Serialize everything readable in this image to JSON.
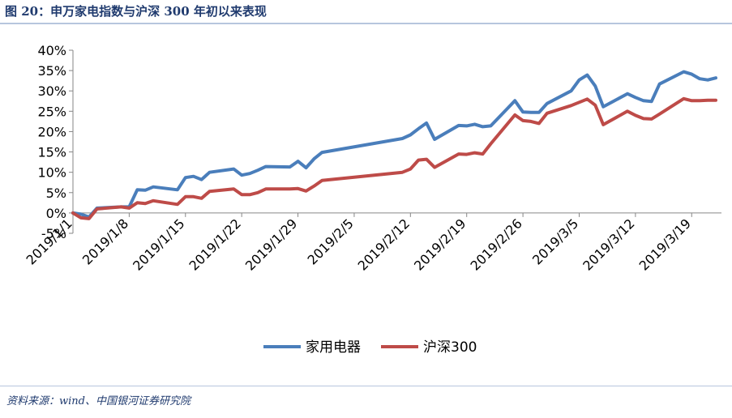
{
  "figure": {
    "title": "图 20：申万家电指数与沪深 300 年初以来表现",
    "source": "资料来源：wind、中国银河证券研究院"
  },
  "chart_data": {
    "type": "line",
    "title": "",
    "xlabel": "",
    "ylabel": "",
    "ylim": [
      -0.05,
      0.4
    ],
    "y_ticks": [
      "-5%",
      "0%",
      "5%",
      "10%",
      "15%",
      "20%",
      "25%",
      "30%",
      "35%",
      "40%"
    ],
    "y_tick_values": [
      -0.05,
      0,
      0.05,
      0.1,
      0.15,
      0.2,
      0.25,
      0.3,
      0.35,
      0.4
    ],
    "x_ticks": [
      "2019/1/1",
      "2019/1/8",
      "2019/1/15",
      "2019/1/22",
      "2019/1/29",
      "2019/2/5",
      "2019/2/12",
      "2019/2/19",
      "2019/2/26",
      "2019/3/5",
      "2019/3/12",
      "2019/3/19"
    ],
    "grid": false,
    "legend": "bottom",
    "x": [
      "2019-01-01",
      "2019-01-02",
      "2019-01-03",
      "2019-01-04",
      "2019-01-07",
      "2019-01-08",
      "2019-01-09",
      "2019-01-10",
      "2019-01-11",
      "2019-01-14",
      "2019-01-15",
      "2019-01-16",
      "2019-01-17",
      "2019-01-18",
      "2019-01-21",
      "2019-01-22",
      "2019-01-23",
      "2019-01-24",
      "2019-01-25",
      "2019-01-28",
      "2019-01-29",
      "2019-01-30",
      "2019-01-31",
      "2019-02-01",
      "2019-02-11",
      "2019-02-12",
      "2019-02-13",
      "2019-02-14",
      "2019-02-15",
      "2019-02-18",
      "2019-02-19",
      "2019-02-20",
      "2019-02-21",
      "2019-02-22",
      "2019-02-25",
      "2019-02-26",
      "2019-02-27",
      "2019-02-28",
      "2019-03-01",
      "2019-03-04",
      "2019-03-05",
      "2019-03-06",
      "2019-03-07",
      "2019-03-08",
      "2019-03-11",
      "2019-03-12",
      "2019-03-13",
      "2019-03-14",
      "2019-03-15",
      "2019-03-18",
      "2019-03-19",
      "2019-03-20",
      "2019-03-21",
      "2019-03-22"
    ],
    "series": [
      {
        "name": "家用电器",
        "color": "#4a7ebb",
        "values": [
          0.0,
          -0.003,
          -0.01,
          0.012,
          0.015,
          0.015,
          0.057,
          0.056,
          0.064,
          0.057,
          0.087,
          0.09,
          0.082,
          0.1,
          0.108,
          0.093,
          0.097,
          0.105,
          0.114,
          0.113,
          0.127,
          0.111,
          0.133,
          0.149,
          0.183,
          0.192,
          0.207,
          0.221,
          0.181,
          0.215,
          0.214,
          0.218,
          0.212,
          0.214,
          0.276,
          0.248,
          0.247,
          0.247,
          0.269,
          0.3,
          0.327,
          0.339,
          0.312,
          0.261,
          0.293,
          0.284,
          0.276,
          0.274,
          0.317,
          0.347,
          0.341,
          0.33,
          0.327,
          0.332
        ]
      },
      {
        "name": "沪深300",
        "color": "#be4b48",
        "values": [
          0.0,
          -0.012,
          -0.014,
          0.01,
          0.015,
          0.012,
          0.025,
          0.023,
          0.03,
          0.021,
          0.04,
          0.04,
          0.036,
          0.053,
          0.059,
          0.045,
          0.045,
          0.05,
          0.059,
          0.059,
          0.06,
          0.054,
          0.066,
          0.08,
          0.1,
          0.108,
          0.13,
          0.132,
          0.112,
          0.145,
          0.144,
          0.148,
          0.145,
          0.17,
          0.241,
          0.227,
          0.225,
          0.22,
          0.245,
          0.264,
          0.272,
          0.28,
          0.265,
          0.217,
          0.25,
          0.24,
          0.232,
          0.231,
          0.243,
          0.281,
          0.276,
          0.276,
          0.277,
          0.277
        ]
      }
    ]
  }
}
